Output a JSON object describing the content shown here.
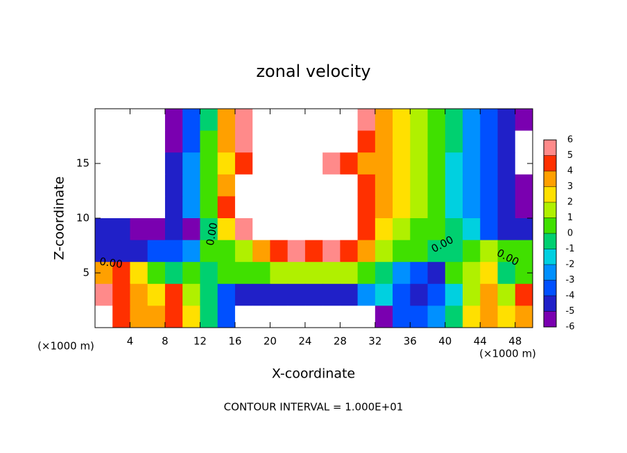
{
  "chart_data": {
    "type": "heatmap",
    "title": "zonal velocity",
    "x_label": "X-coordinate",
    "y_label": "Z-coordinate",
    "x_unit": "(×1000 m)",
    "footer": "CONTOUR INTERVAL = 1.000E+01",
    "annotations": [
      "0.00",
      "0.00",
      "0.00",
      "0.00"
    ],
    "x": [
      1,
      3,
      5,
      7,
      9,
      11,
      13,
      15,
      17,
      19,
      21,
      23,
      25,
      27,
      29,
      31,
      33,
      35,
      37,
      39,
      41,
      43,
      45,
      47,
      49
    ],
    "z": [
      19,
      17,
      15,
      13,
      11,
      9,
      7,
      5,
      3,
      1
    ],
    "values": [
      [
        -10,
        -10,
        -10,
        -10,
        -5.5,
        -3.5,
        -0.5,
        3.5,
        5.5,
        10,
        10,
        10,
        10,
        10,
        10,
        5.5,
        4,
        3,
        1.5,
        0.5,
        -0.5,
        -2,
        -3.5,
        -4.5,
        -5.5
      ],
      [
        -10,
        -10,
        -10,
        -10,
        -5,
        -3,
        0.5,
        3.5,
        5.5,
        10,
        10,
        10,
        10,
        10,
        10,
        5,
        3.5,
        2.5,
        1.5,
        0.5,
        -0.5,
        -2,
        -3.5,
        -4.5,
        -10
      ],
      [
        -10,
        -10,
        -10,
        -10,
        -4.5,
        -2.5,
        0.5,
        3,
        5,
        10,
        10,
        10,
        10,
        5.5,
        4.5,
        4,
        3.5,
        2.5,
        1.5,
        0.5,
        -1,
        -2.5,
        -3.5,
        -4.5,
        -10
      ],
      [
        -10,
        -10,
        -10,
        -10,
        -4.5,
        -2,
        1,
        3.5,
        10,
        10,
        10,
        10,
        10,
        10,
        10,
        5,
        3.5,
        2.5,
        1.5,
        0.5,
        -1,
        -2.5,
        -3.5,
        -4.5,
        -5.5
      ],
      [
        -10,
        -10,
        -10,
        -10,
        -4.5,
        -2,
        1,
        4.5,
        10,
        10,
        10,
        10,
        10,
        10,
        10,
        5,
        3.5,
        2.5,
        1.5,
        0.5,
        -1,
        -2,
        -3.5,
        -4.5,
        -5.5
      ],
      [
        -4.5,
        -4.5,
        -5,
        -5,
        -4.5,
        -5,
        0,
        2.5,
        5.5,
        10,
        10,
        10,
        10,
        10,
        10,
        5,
        3,
        2,
        1,
        0.5,
        -0.5,
        -1.5,
        -3,
        -4,
        -4.5
      ],
      [
        -4,
        -4,
        -4.5,
        -3.5,
        -3,
        -2,
        0.5,
        1,
        2,
        4,
        5,
        5.5,
        5,
        5.5,
        5,
        4,
        1.5,
        0.5,
        0.5,
        0,
        -0.5,
        0.5,
        2,
        1,
        0.5
      ],
      [
        3.5,
        4.5,
        3,
        1,
        0,
        1,
        0,
        0.5,
        1,
        1,
        1.5,
        1.5,
        1.5,
        1.5,
        1.5,
        0.5,
        -0.5,
        -2.5,
        -3,
        -4,
        0.5,
        1.5,
        3,
        -0.5,
        1
      ],
      [
        5.5,
        5,
        4,
        3,
        4.5,
        2,
        0,
        -3,
        -4,
        -4,
        -4,
        -4,
        -4,
        -4.5,
        -4.5,
        -2.5,
        -1.5,
        -3.5,
        -4.5,
        -3.5,
        -1,
        1.5,
        3.5,
        2,
        4.5
      ],
      [
        10,
        4.5,
        3.5,
        4,
        4.5,
        3,
        0,
        -3.5,
        -10,
        -10,
        -10,
        -10,
        -10,
        -10,
        -10,
        -10,
        -5.5,
        -3,
        -3,
        -2,
        0,
        2.5,
        4,
        3,
        4
      ]
    ],
    "xlim": [
      0,
      50
    ],
    "ylim": [
      0,
      20
    ],
    "xticks": [
      4,
      8,
      12,
      16,
      20,
      24,
      28,
      32,
      36,
      40,
      44,
      48
    ],
    "yticks": [
      5,
      10,
      15
    ],
    "colorbar_ticks": [
      -6,
      -5,
      -4,
      -3,
      -2,
      -1,
      0,
      1,
      2,
      3,
      4,
      5,
      6
    ],
    "colors": [
      "#7a00b0",
      "#2020c8",
      "#0050ff",
      "#0090ff",
      "#00d0e0",
      "#00d070",
      "#40e000",
      "#b0f000",
      "#ffe000",
      "#ffa000",
      "#ff3000",
      "#ff8a8a"
    ]
  }
}
